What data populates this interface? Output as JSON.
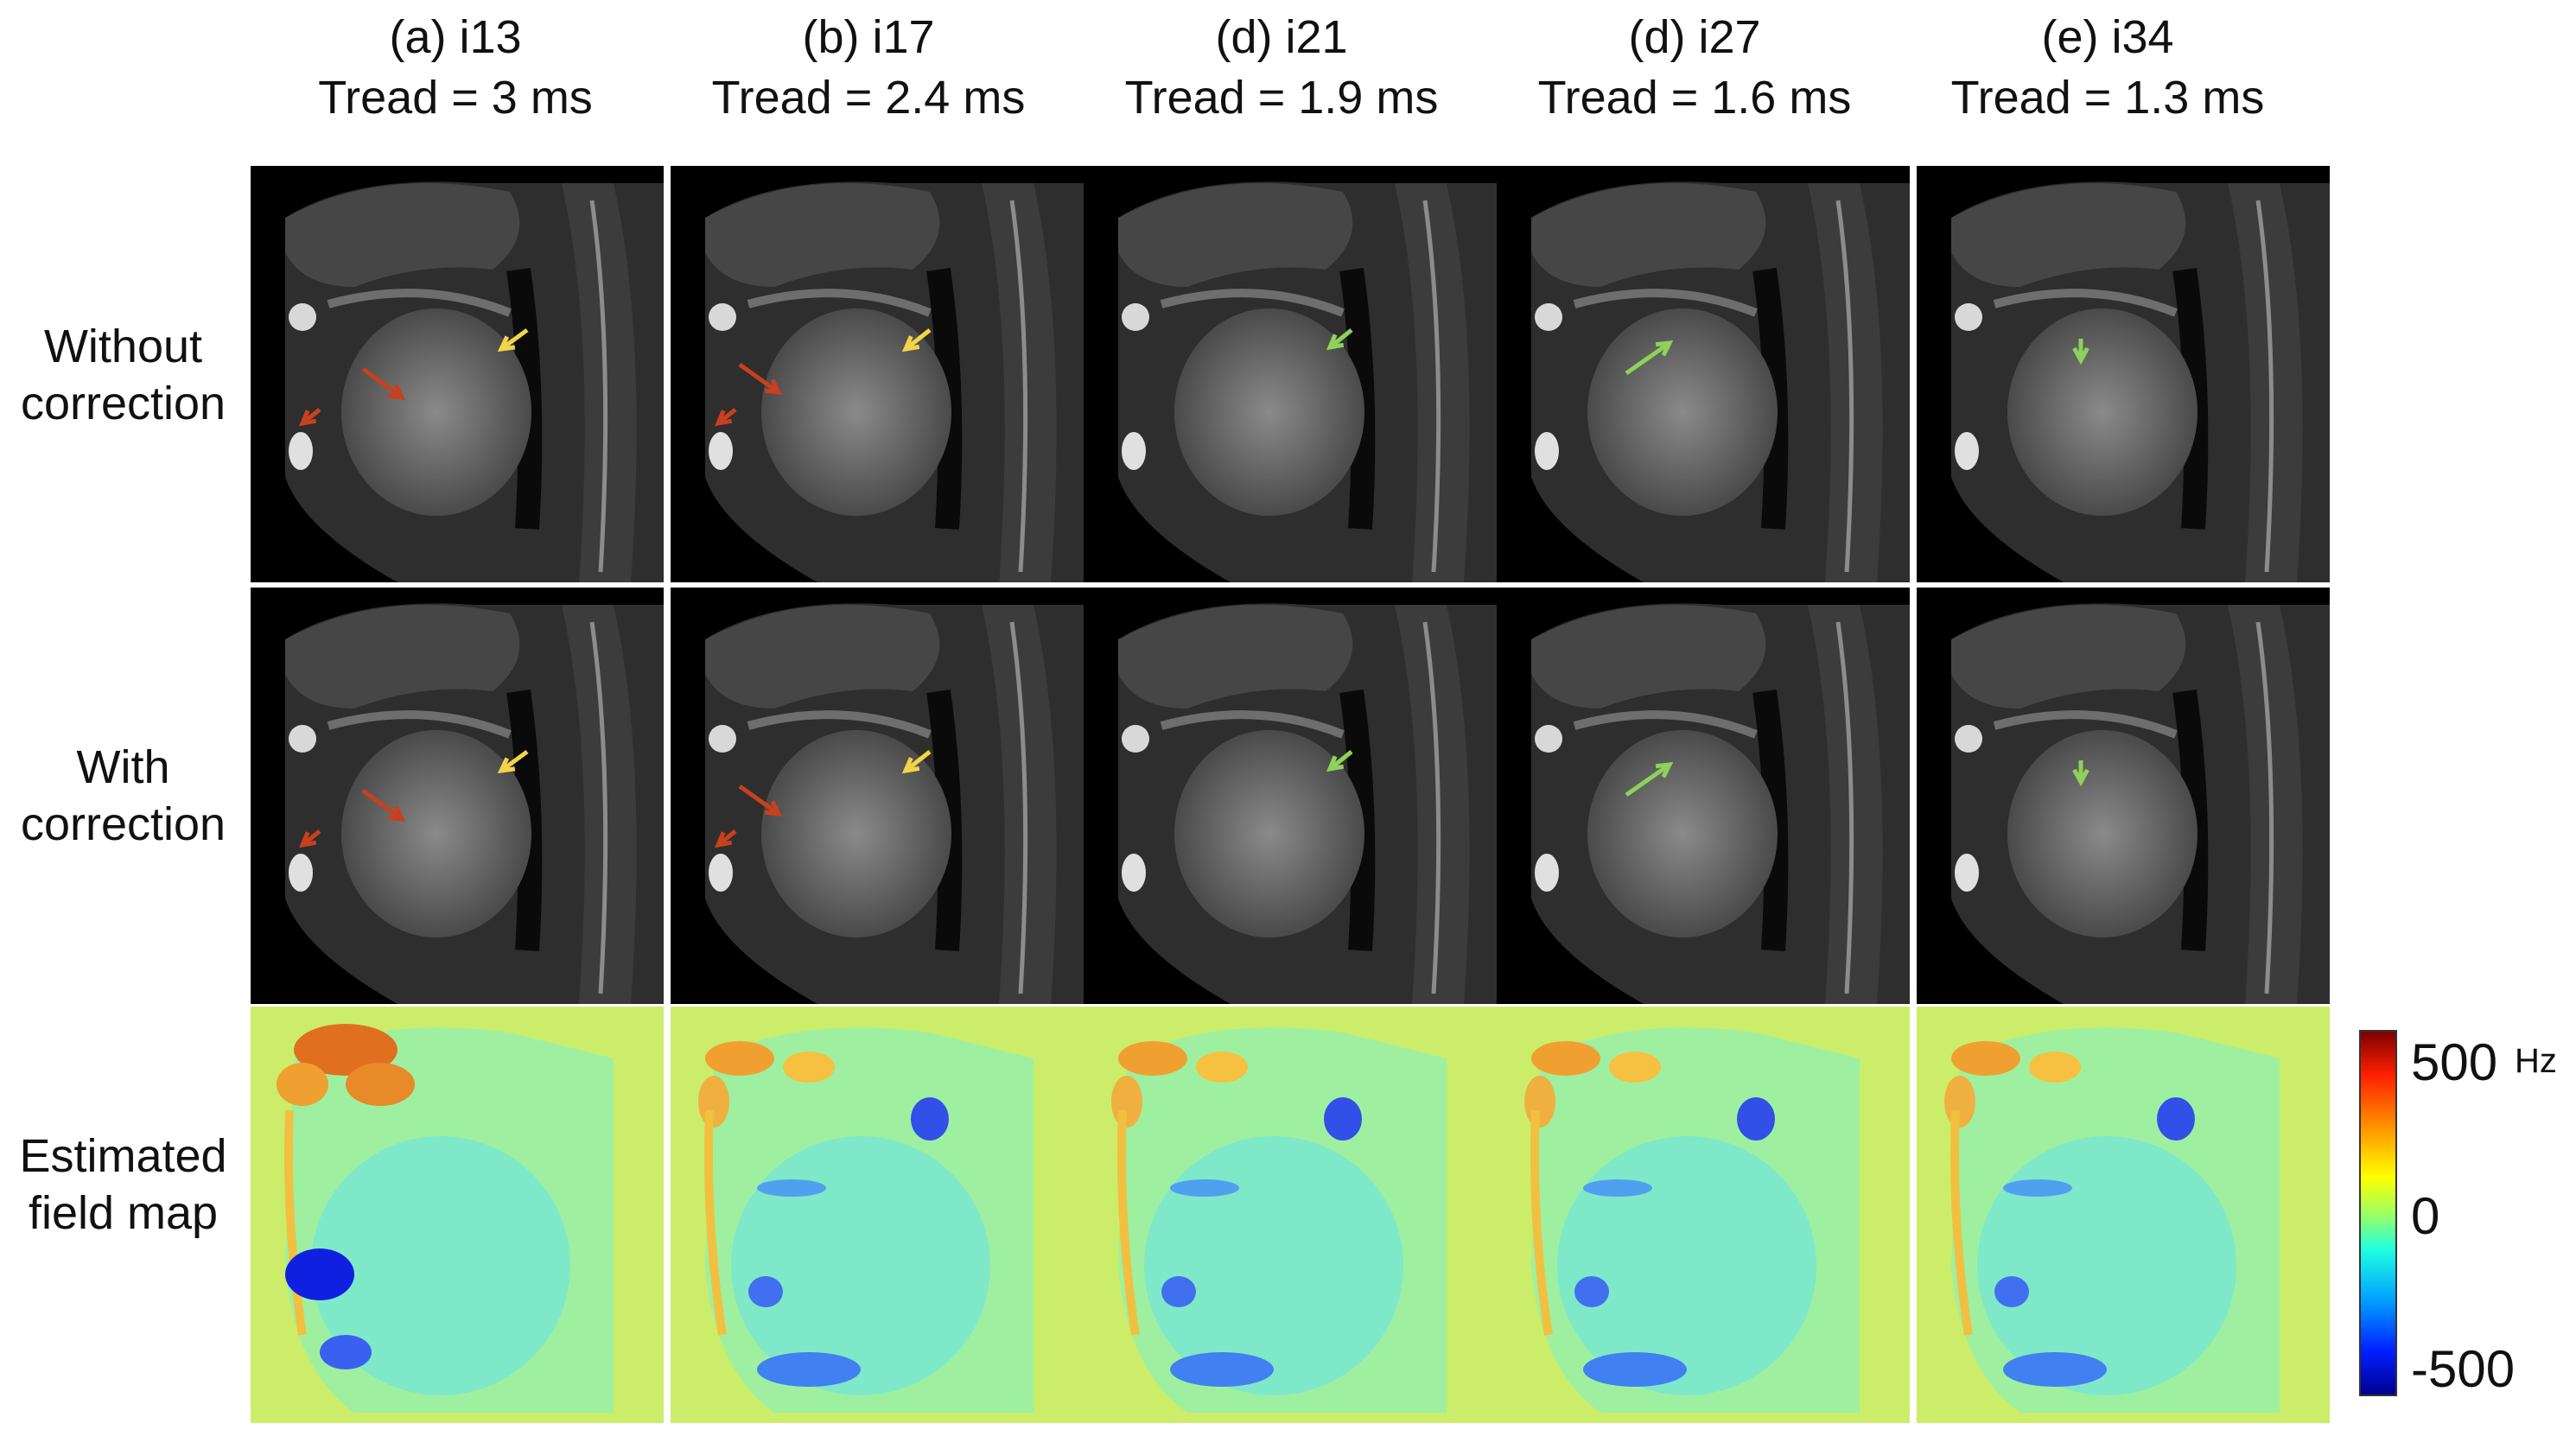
{
  "columns": [
    {
      "label": "(a) i13",
      "tread": "Tread = 3 ms"
    },
    {
      "label": "(b) i17",
      "tread": "Tread = 2.4 ms"
    },
    {
      "label": "(d) i21",
      "tread": "Tread = 1.9 ms"
    },
    {
      "label": "(d) i27",
      "tread": "Tread = 1.6 ms"
    },
    {
      "label": "(e) i34",
      "tread": "Tread = 1.3 ms"
    }
  ],
  "rows": [
    {
      "line1": "Without",
      "line2": "correction"
    },
    {
      "line1": "With",
      "line2": "correction"
    },
    {
      "line1": "Estimated",
      "line2": "field map"
    }
  ],
  "colorbar": {
    "max_label": "500",
    "mid_label": "0",
    "min_label": "-500",
    "unit": "Hz",
    "range": [
      -500,
      500
    ]
  },
  "arrow_colors": {
    "red": "#c8401e",
    "yellow": "#f2d44a",
    "green": "#8fd15a"
  }
}
